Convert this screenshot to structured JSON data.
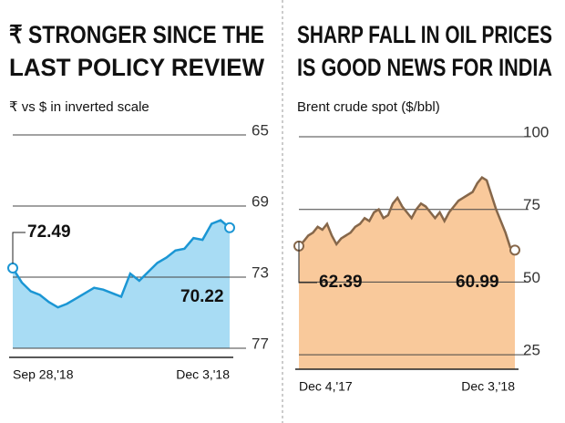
{
  "chart_data": [
    {
      "type": "area",
      "title": [
        "₹ STRONGER SINCE THE",
        "LAST POLICY REVIEW"
      ],
      "subtitle": "₹ vs $ in inverted scale",
      "categories": [
        "Sep 28,'18",
        null,
        null,
        null,
        null,
        null,
        null,
        null,
        null,
        null,
        null,
        null,
        null,
        null,
        null,
        null,
        null,
        null,
        null,
        null,
        null,
        null,
        null,
        null,
        "Dec 3,'18"
      ],
      "values": [
        72.49,
        73.3,
        73.8,
        74.0,
        74.4,
        74.7,
        74.5,
        74.2,
        73.9,
        73.6,
        73.7,
        73.9,
        74.1,
        72.8,
        73.2,
        72.7,
        72.2,
        71.9,
        71.5,
        71.4,
        70.8,
        70.9,
        70.0,
        69.8,
        70.22
      ],
      "ylim": [
        65,
        77
      ],
      "yticks": [
        65,
        69,
        73,
        77
      ],
      "inverted": true,
      "color": "#1b96d4",
      "fill": "#a8dcf4"
    },
    {
      "type": "area",
      "title": [
        "SHARP FALL IN OIL PRICES",
        "IS GOOD NEWS FOR INDIA"
      ],
      "subtitle": "Brent crude spot ($/bbl)",
      "categories": [
        "Dec 4,'17",
        null,
        null,
        null,
        null,
        null,
        null,
        null,
        null,
        null,
        null,
        null,
        null,
        null,
        null,
        null,
        null,
        null,
        null,
        null,
        null,
        null,
        null,
        null,
        null,
        null,
        null,
        null,
        null,
        null,
        null,
        null,
        null,
        null,
        null,
        null,
        null,
        null,
        null,
        null,
        null,
        null,
        null,
        null,
        null,
        null,
        "Dec 3,'18"
      ],
      "values": [
        62.39,
        64,
        66,
        67,
        69,
        68,
        70,
        66,
        63,
        65,
        66,
        67,
        69,
        70,
        72,
        71,
        74,
        75,
        72,
        73,
        77,
        79,
        76,
        74,
        72,
        75,
        77,
        76,
        74,
        72,
        74,
        71,
        74,
        76,
        78,
        79,
        80,
        81,
        84,
        86,
        85,
        80,
        75,
        71,
        67,
        62,
        60.99
      ],
      "ylim": [
        20,
        100
      ],
      "yticks": [
        25,
        50,
        75,
        100
      ],
      "inverted": false,
      "color": "#86674a",
      "fill": "#f9c99b"
    }
  ]
}
